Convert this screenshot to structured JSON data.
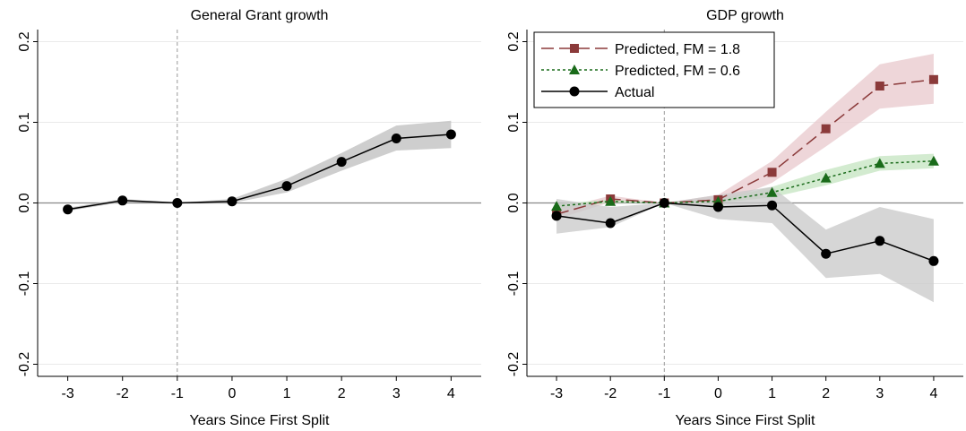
{
  "chart_data": [
    {
      "type": "line",
      "title": "General Grant growth",
      "xlabel": "Years Since First Split",
      "x": [
        -3,
        -2,
        -1,
        0,
        1,
        2,
        3,
        4
      ],
      "xlim": [
        -3.55,
        4.55
      ],
      "ylim": [
        -0.215,
        0.215
      ],
      "xticks": [
        -3,
        -2,
        -1,
        0,
        1,
        2,
        3,
        4
      ],
      "yticks": [
        -0.2,
        -0.1,
        {
          "value": 0,
          "label": "0.0"
        },
        0.1,
        0.2
      ],
      "grid": true,
      "hline": 0,
      "vline": -1,
      "series": [
        {
          "color": "#000000",
          "band_color": "#bdbdbd",
          "marker": "circle",
          "dash": "none",
          "values": [
            -0.008,
            0.003,
            0,
            0.002,
            0.021,
            0.051,
            0.08,
            0.085
          ],
          "ci_lower": [
            -0.01,
            0.001,
            0,
            0.0,
            0.013,
            0.04,
            0.065,
            0.068
          ],
          "ci_upper": [
            -0.006,
            0.005,
            0,
            0.005,
            0.03,
            0.062,
            0.096,
            0.102
          ]
        }
      ]
    },
    {
      "type": "line",
      "title": "GDP growth",
      "xlabel": "Years Since First Split",
      "x": [
        -3,
        -2,
        -1,
        0,
        1,
        2,
        3,
        4
      ],
      "xlim": [
        -3.55,
        4.55
      ],
      "ylim": [
        -0.215,
        0.215
      ],
      "xticks": [
        -3,
        -2,
        -1,
        0,
        1,
        2,
        3,
        4
      ],
      "yticks": [
        -0.2,
        -0.1,
        {
          "value": 0,
          "label": "0.0"
        },
        0.1,
        0.2
      ],
      "grid": true,
      "hline": 0,
      "vline": -1,
      "legend": "top-left",
      "series": [
        {
          "name": "Predicted, FM = 1.8",
          "color": "#8b3a3a",
          "band_color": "#e8c8cc",
          "marker": "square",
          "dash": "14 6",
          "values": [
            -0.014,
            0.005,
            0,
            0.004,
            0.038,
            0.092,
            0.145,
            0.153
          ],
          "ci_lower": [
            -0.02,
            0.001,
            0,
            -0.002,
            0.025,
            0.07,
            0.117,
            0.123
          ],
          "ci_upper": [
            -0.008,
            0.009,
            0,
            0.01,
            0.052,
            0.113,
            0.172,
            0.185
          ]
        },
        {
          "name": "Predicted, FM = 0.6",
          "color": "#1a6b1a",
          "band_color": "#c4e4c0",
          "marker": "triangle",
          "dash": "3 3",
          "values": [
            -0.004,
            0.002,
            0,
            0.002,
            0.013,
            0.031,
            0.049,
            0.052
          ],
          "ci_lower": [
            -0.007,
            0.0,
            0,
            0.0,
            0.007,
            0.022,
            0.04,
            0.043
          ],
          "ci_upper": [
            -0.001,
            0.004,
            0,
            0.004,
            0.02,
            0.041,
            0.058,
            0.061
          ]
        },
        {
          "name": "Actual",
          "color": "#000000",
          "band_color": "#c8c8c8",
          "marker": "circle",
          "dash": "none",
          "values": [
            -0.016,
            -0.025,
            0,
            -0.005,
            -0.003,
            -0.063,
            -0.047,
            -0.072
          ],
          "ci_lower": [
            -0.038,
            -0.03,
            0,
            -0.02,
            -0.025,
            -0.093,
            -0.088,
            -0.123
          ],
          "ci_upper": [
            0.005,
            -0.005,
            0,
            0.01,
            0.02,
            -0.033,
            -0.005,
            -0.02
          ]
        }
      ]
    }
  ]
}
